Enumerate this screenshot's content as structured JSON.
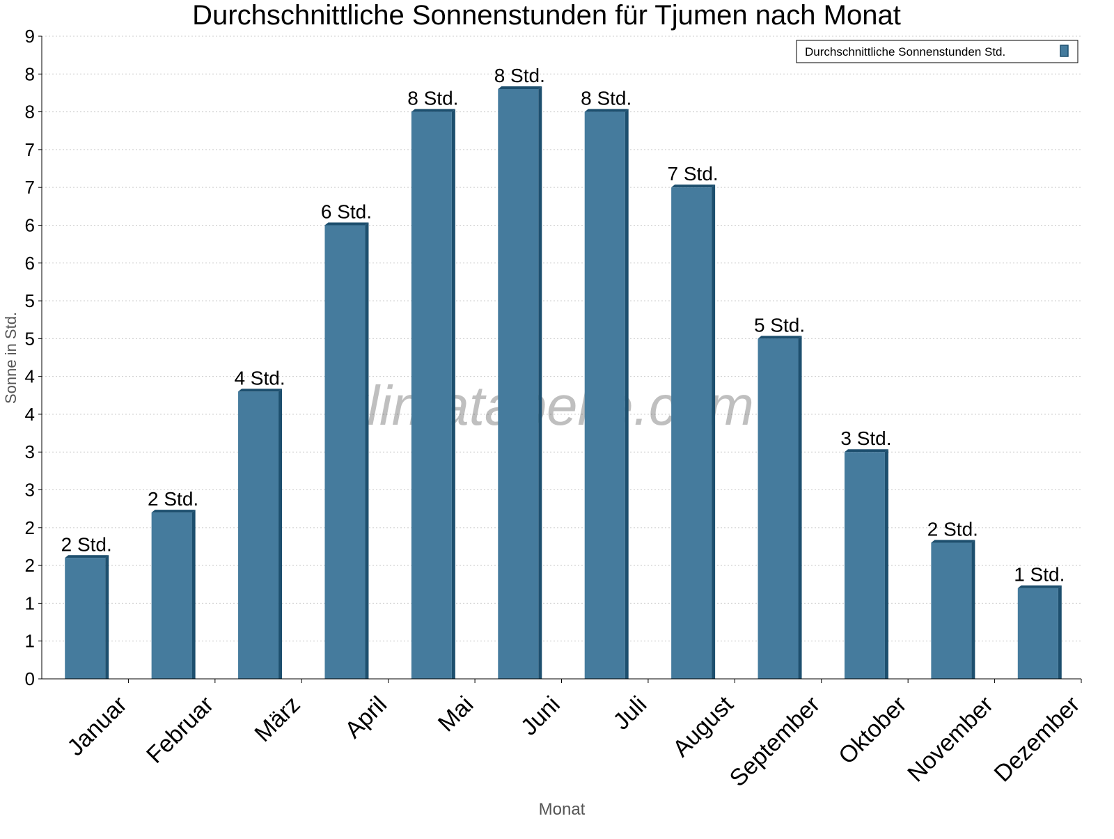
{
  "chart_data": {
    "type": "bar",
    "title": "Durchschnittliche Sonnenstunden für Tjumen nach Monat",
    "xlabel": "Monat",
    "ylabel": "Sonne in Std.",
    "categories": [
      "Januar",
      "Februar",
      "März",
      "April",
      "Mai",
      "Juni",
      "Juli",
      "August",
      "September",
      "Oktober",
      "November",
      "Dezember"
    ],
    "series": [
      {
        "name": "Durchschnittliche Sonnenstunden Std.",
        "values": [
          1.6,
          2.2,
          3.8,
          6.0,
          7.5,
          7.8,
          7.5,
          6.5,
          4.5,
          3.0,
          1.8,
          1.2
        ],
        "data_labels": [
          "2 Std.",
          "2 Std.",
          "4 Std.",
          "6 Std.",
          "8 Std.",
          "8 Std.",
          "8 Std.",
          "7 Std.",
          "5 Std.",
          "3 Std.",
          "2 Std.",
          "1 Std."
        ]
      }
    ],
    "ylim": [
      0,
      8.5
    ],
    "yticks": [
      0,
      0.5,
      1,
      1.5,
      2,
      2.5,
      3,
      3.5,
      4,
      4.5,
      5,
      5.5,
      6,
      6.5,
      7,
      7.5,
      8,
      8.5
    ],
    "ytick_labels": [
      "0",
      "1",
      "1",
      "2",
      "2",
      "3",
      "3",
      "4",
      "4",
      "5",
      "5",
      "6",
      "6",
      "7",
      "7",
      "8",
      "8",
      "9"
    ],
    "grid": true,
    "legend_position": "top-right",
    "colors": {
      "bar": "#457b9d",
      "bar_side": "#1d4f6e",
      "grid": "#cccccc"
    },
    "watermark": "klimatabelle.com"
  }
}
